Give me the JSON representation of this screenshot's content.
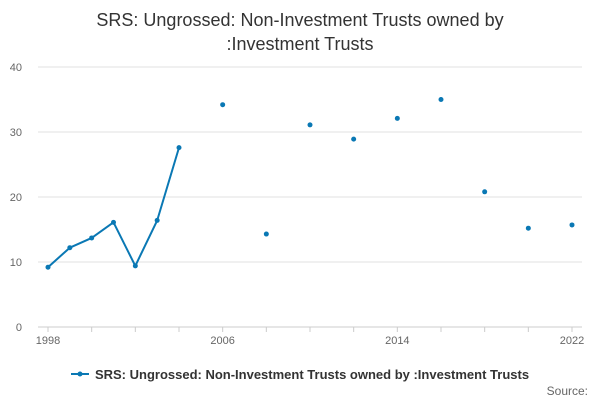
{
  "title_line1": "SRS: Ungrossed: Non-Investment Trusts owned by",
  "title_line2": ":Investment Trusts",
  "source_label": "Source:",
  "chart_data": {
    "type": "line",
    "title": "SRS: Ungrossed: Non-Investment Trusts owned by :Investment Trusts",
    "xlabel": "",
    "ylabel": "",
    "xlim": [
      1998,
      2022
    ],
    "ylim": [
      0,
      40
    ],
    "grid": true,
    "legend_position": "bottom",
    "x_ticks": [
      "1998",
      "2006",
      "2014",
      "2022"
    ],
    "y_ticks": [
      "0",
      "10",
      "20",
      "30",
      "40"
    ],
    "series_color": "#0a78b4",
    "series": [
      {
        "name": "SRS: Ungrossed: Non-Investment Trusts owned by :Investment Trusts",
        "points": [
          {
            "x": 1998,
            "y": 9.2
          },
          {
            "x": 1999,
            "y": 12.2
          },
          {
            "x": 2000,
            "y": 13.7
          },
          {
            "x": 2001,
            "y": 16.1
          },
          {
            "x": 2002,
            "y": 9.4
          },
          {
            "x": 2003,
            "y": 16.4
          },
          {
            "x": 2004,
            "y": 27.6
          },
          {
            "x": 2006,
            "y": 34.2
          },
          {
            "x": 2008,
            "y": 14.3
          },
          {
            "x": 2010,
            "y": 31.1
          },
          {
            "x": 2012,
            "y": 28.9
          },
          {
            "x": 2014,
            "y": 32.1
          },
          {
            "x": 2016,
            "y": 35.0
          },
          {
            "x": 2018,
            "y": 20.8
          },
          {
            "x": 2020,
            "y": 15.2
          },
          {
            "x": 2022,
            "y": 15.7
          }
        ]
      }
    ]
  }
}
